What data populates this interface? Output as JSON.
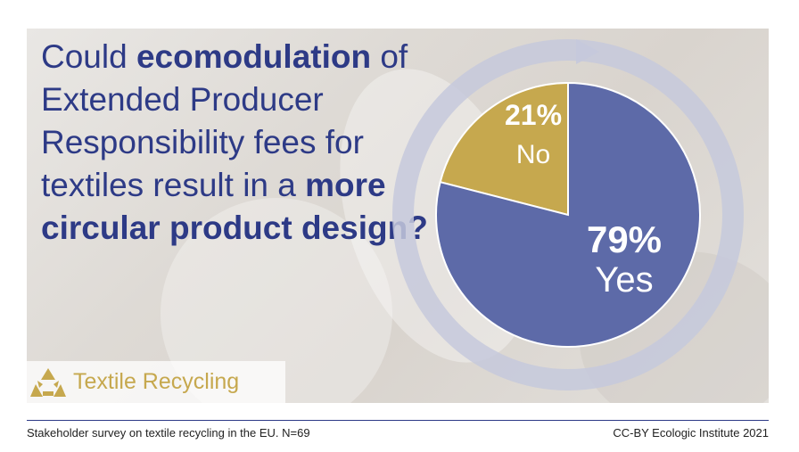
{
  "question": {
    "part1": "Could ",
    "bold1": "ecomodulation",
    "part2": " of Extended Producer Responsibility fees for textiles result in a ",
    "bold2": "more circular product design?"
  },
  "chart_data": {
    "type": "pie",
    "categories": [
      "No",
      "Yes"
    ],
    "values": [
      21,
      79
    ],
    "value_labels": [
      "21%",
      "79%"
    ],
    "colors": [
      "#c6a84e",
      "#5d6aa8"
    ],
    "title": "",
    "legend": "none"
  },
  "badge": {
    "label": "Textile Recycling",
    "icon": "recycle-icon",
    "color": "#c6a84e"
  },
  "footer": {
    "left": "Stakeholder survey on textile recycling in the EU. N=69",
    "right": "CC-BY Ecologic Institute 2021"
  },
  "colors": {
    "accent": "#2d3a86",
    "gold": "#c6a84e",
    "slate": "#5d6aa8"
  }
}
